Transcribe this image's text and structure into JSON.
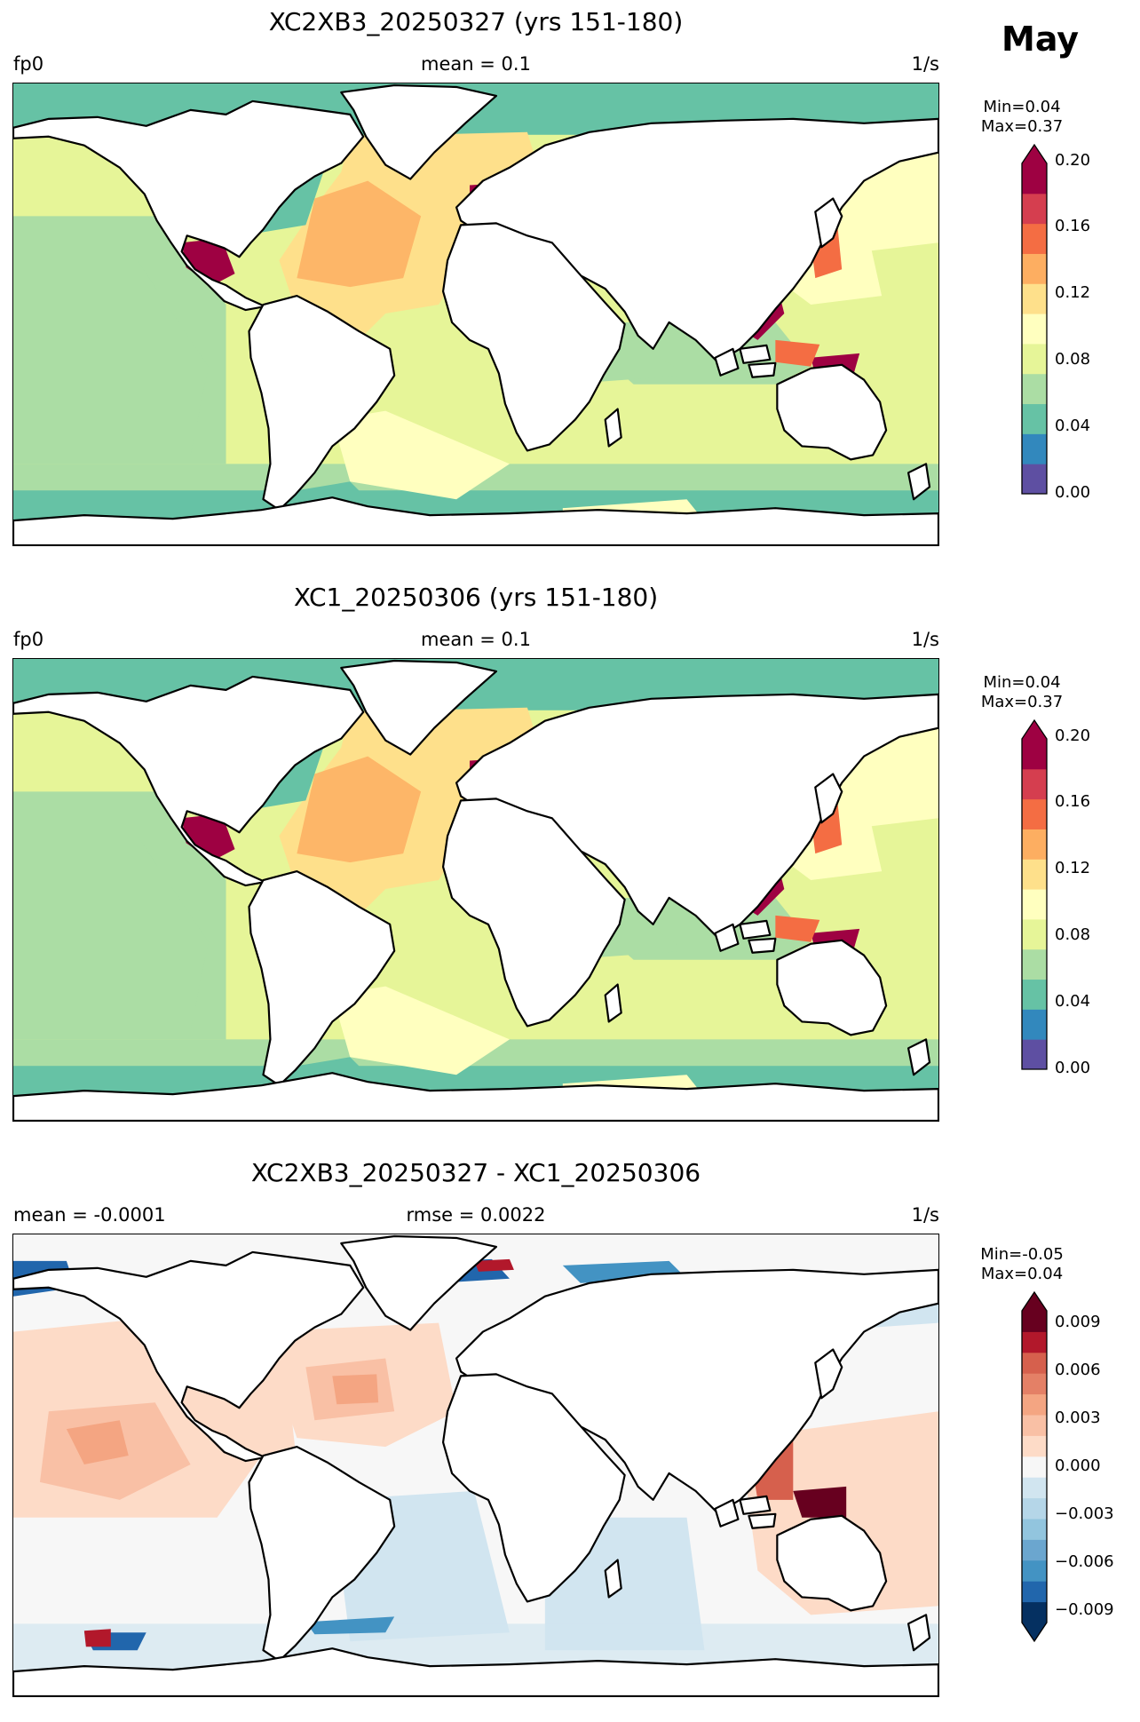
{
  "month": "May",
  "panels": [
    {
      "title": "XC2XB3_20250327 (yrs 151-180)",
      "left_label": "fp0",
      "center_label": "mean = 0.1",
      "units": "1/s",
      "min_label": "Min=0.04",
      "max_label": "Max=0.37",
      "colorbar": {
        "colors": [
          "#5e4fa2",
          "#3288bd",
          "#66c2a5",
          "#abdda4",
          "#e6f598",
          "#ffffbf",
          "#fee08b",
          "#fdae61",
          "#f46d43",
          "#d53e4f",
          "#9e0142"
        ],
        "ticks": [
          "0.20",
          "0.16",
          "0.12",
          "0.08",
          "0.04",
          "0.00"
        ],
        "extend": "max"
      }
    },
    {
      "title": "XC1_20250306 (yrs 151-180)",
      "left_label": "fp0",
      "center_label": "mean = 0.1",
      "units": "1/s",
      "min_label": "Min=0.04",
      "max_label": "Max=0.37",
      "colorbar": {
        "colors": [
          "#5e4fa2",
          "#3288bd",
          "#66c2a5",
          "#abdda4",
          "#e6f598",
          "#ffffbf",
          "#fee08b",
          "#fdae61",
          "#f46d43",
          "#d53e4f",
          "#9e0142"
        ],
        "ticks": [
          "0.20",
          "0.16",
          "0.12",
          "0.08",
          "0.04",
          "0.00"
        ],
        "extend": "max"
      }
    },
    {
      "title": "XC2XB3_20250327 - XC1_20250306",
      "left_label": "mean = -0.0001",
      "center_label": "rmse = 0.0022",
      "units": "1/s",
      "min_label": "Min=-0.05",
      "max_label": "Max=0.04",
      "colorbar": {
        "colors": [
          "#053061",
          "#2166ac",
          "#4393c3",
          "#6ba6cf",
          "#92c5de",
          "#b5d6e8",
          "#d1e5f0",
          "#f7f7f7",
          "#fddbc7",
          "#f9c0a5",
          "#f4a582",
          "#e48066",
          "#d6604d",
          "#b2182b",
          "#67001f"
        ],
        "ticks": [
          "0.009",
          "0.006",
          "0.003",
          "0.000",
          "−0.003",
          "−0.006",
          "−0.009"
        ],
        "extend": "both"
      }
    }
  ]
}
